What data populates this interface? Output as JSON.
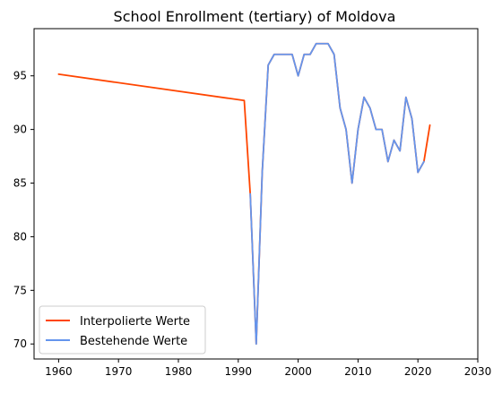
{
  "chart_data": {
    "type": "line",
    "title": "School Enrollment (tertiary) of Moldova",
    "xlabel": "",
    "ylabel": "",
    "xlim": [
      1955.9,
      2030
    ],
    "ylim": [
      68.6,
      99.4
    ],
    "x_ticks": [
      1960,
      1970,
      1980,
      1990,
      2000,
      2010,
      2020,
      2030
    ],
    "y_ticks": [
      70,
      75,
      80,
      85,
      90,
      95
    ],
    "grid": false,
    "legend_position": "lower-left",
    "series": [
      {
        "name": "Interpolierte Werte",
        "color": "#ff4500",
        "x": [
          1960,
          1991,
          1992,
          1993,
          1994,
          1995,
          1996,
          1997,
          1998,
          1999,
          2000,
          2001,
          2002,
          2003,
          2004,
          2005,
          2006,
          2007,
          2008,
          2009,
          2010,
          2011,
          2012,
          2013,
          2014,
          2015,
          2016,
          2017,
          2018,
          2019,
          2020,
          2021,
          2022
        ],
        "y": [
          95.15,
          92.7,
          84,
          70,
          86,
          96,
          97,
          97,
          97,
          97,
          95,
          97,
          97,
          98,
          98,
          98,
          97,
          92,
          90,
          85,
          90,
          93,
          92,
          90,
          90,
          87,
          89,
          88,
          93,
          91,
          86,
          87,
          90.4
        ]
      },
      {
        "name": "Bestehende Werte",
        "color": "#6495ed",
        "x": [
          1992,
          1993,
          1994,
          1995,
          1996,
          1997,
          1998,
          1999,
          2000,
          2001,
          2002,
          2003,
          2004,
          2005,
          2006,
          2007,
          2008,
          2009,
          2010,
          2011,
          2012,
          2013,
          2014,
          2015,
          2016,
          2017,
          2018,
          2019,
          2020,
          2021
        ],
        "y": [
          84,
          70,
          86,
          96,
          97,
          97,
          97,
          97,
          95,
          97,
          97,
          98,
          98,
          98,
          97,
          92,
          90,
          85,
          90,
          93,
          92,
          90,
          90,
          87,
          89,
          88,
          93,
          91,
          86,
          87
        ]
      }
    ]
  }
}
